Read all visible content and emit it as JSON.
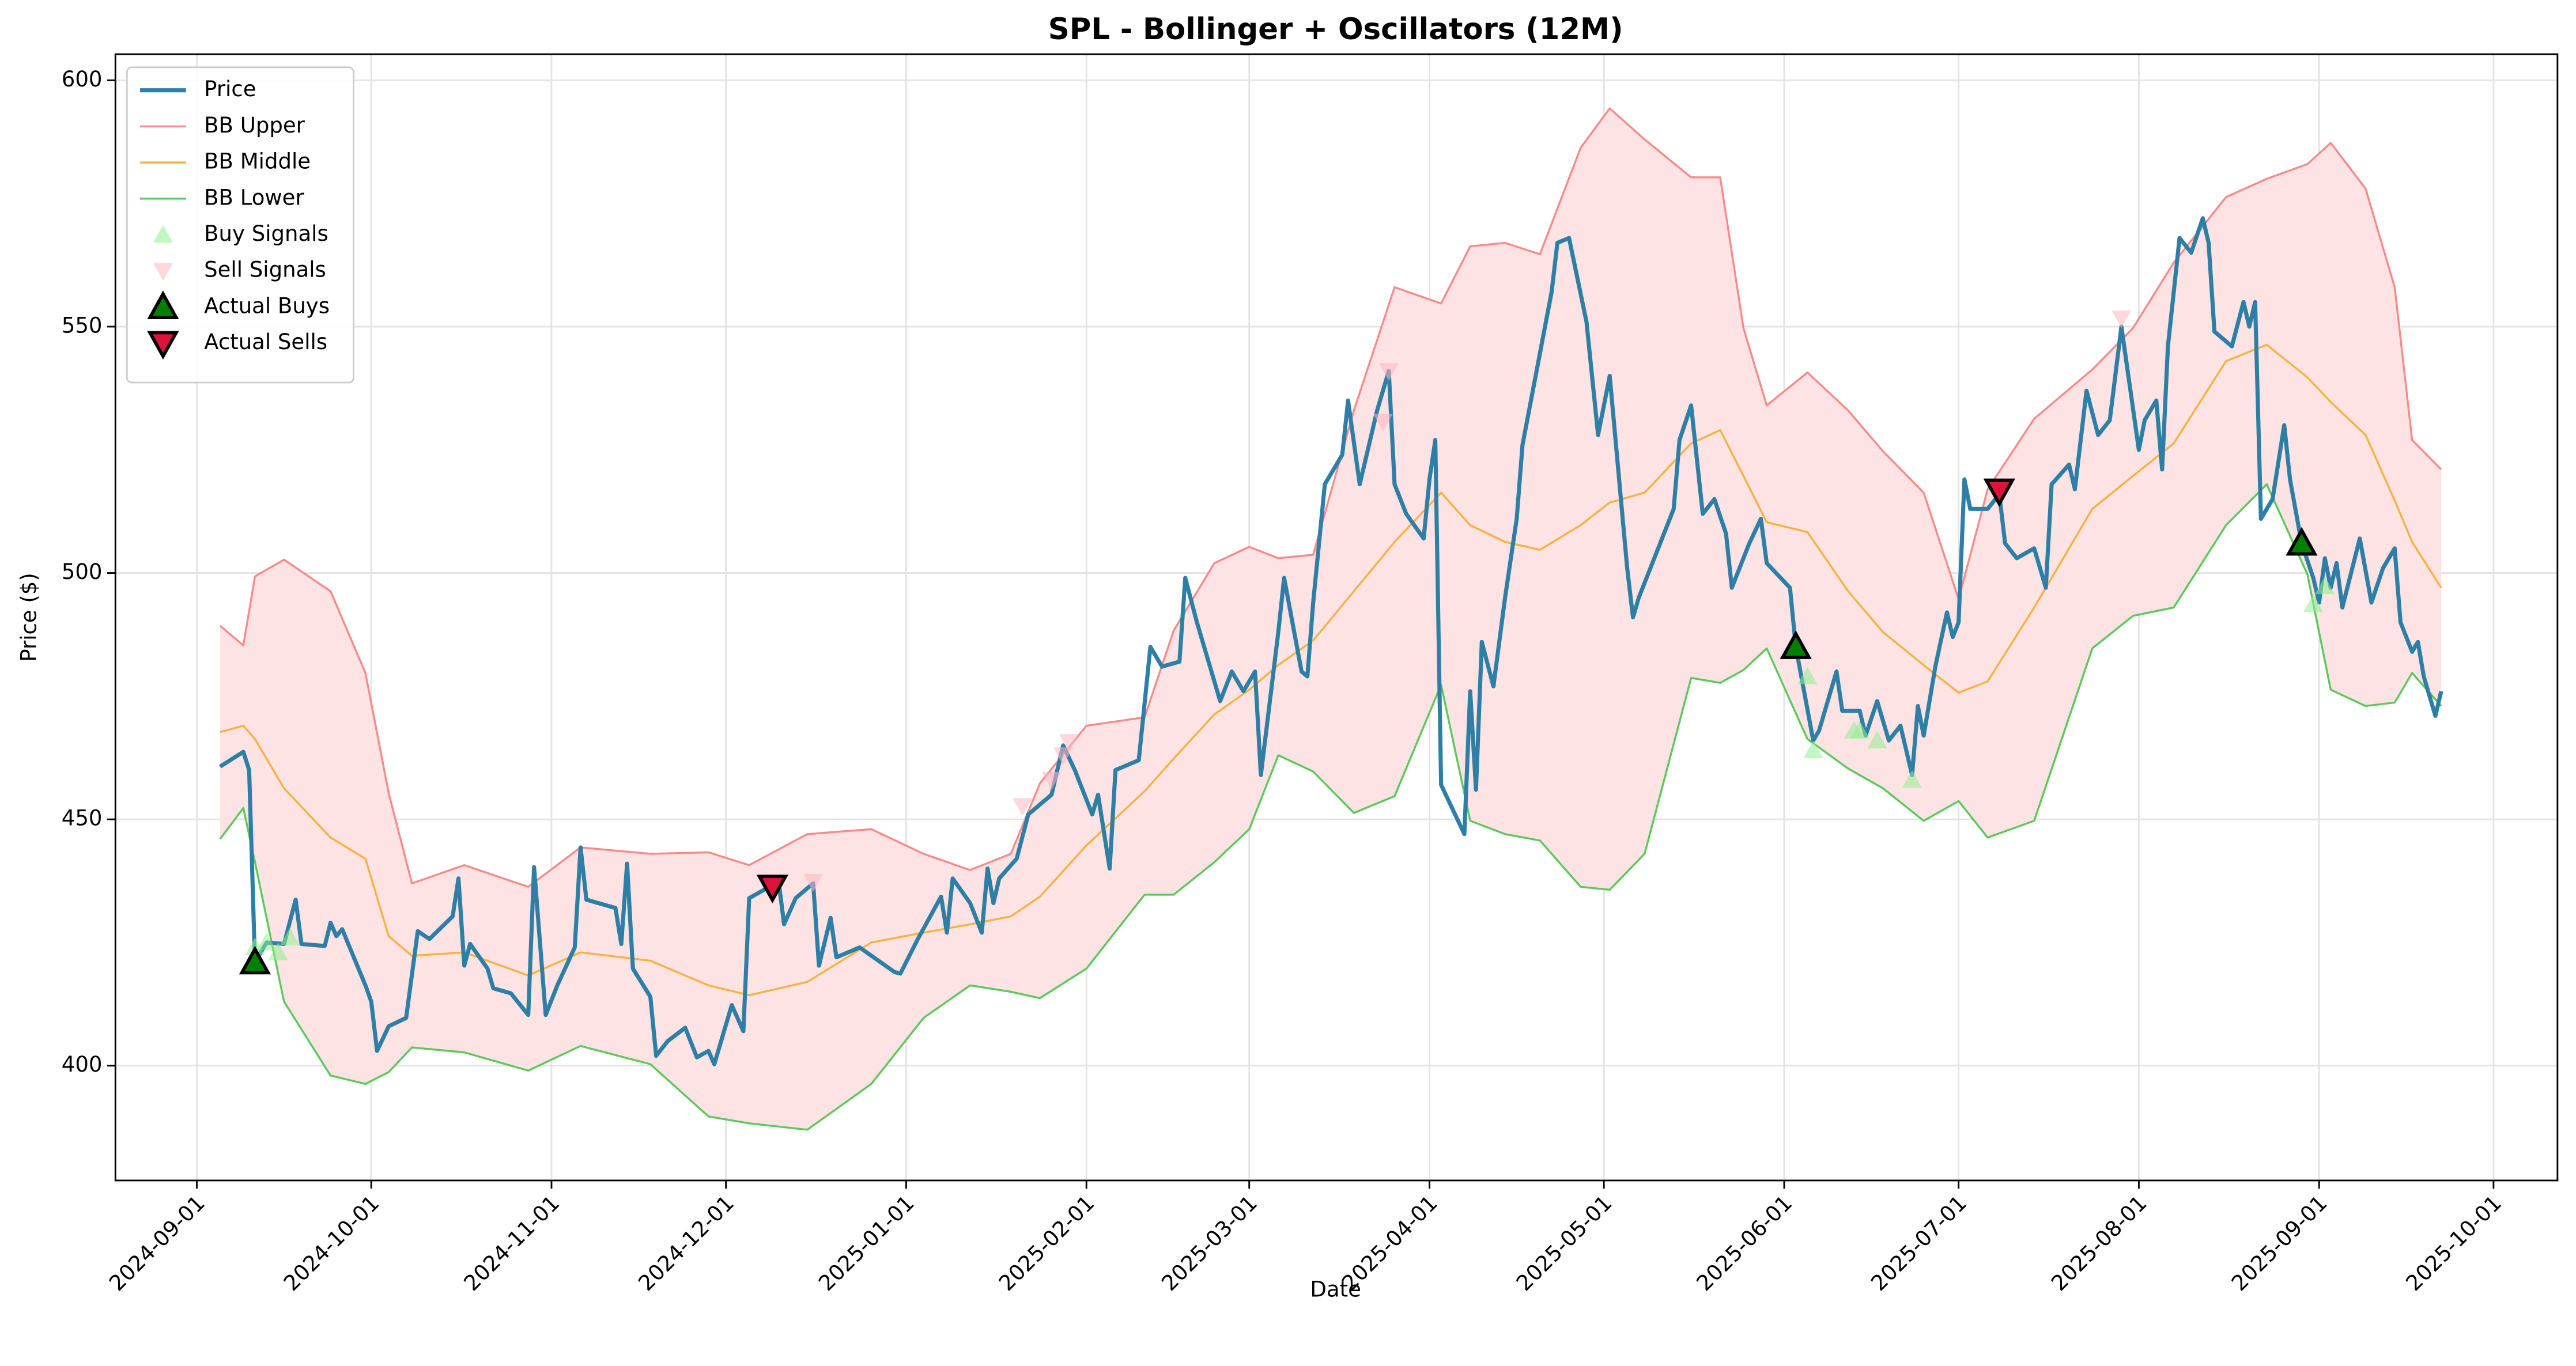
{
  "chart_data": {
    "type": "line",
    "title": "SPL - Bollinger + Oscillators (12M)",
    "x_label": "Date",
    "y_label": "Price ($)",
    "grid": true,
    "legend": "upper left",
    "band_fill_color": "#fde3e3",
    "xlim": [
      "2024-08-18",
      "2025-10-12"
    ],
    "xticks": [
      "2024-09-01",
      "2024-10-01",
      "2024-11-01",
      "2024-12-01",
      "2025-01-01",
      "2025-02-01",
      "2025-03-01",
      "2025-04-01",
      "2025-05-01",
      "2025-06-01",
      "2025-07-01",
      "2025-08-01",
      "2025-09-01",
      "2025-10-01"
    ],
    "ylim": [
      376.7,
      605.3
    ],
    "yticks": [
      400,
      450,
      500,
      550,
      600
    ],
    "series": [
      {
        "name": "Price",
        "color": "#2E7FA6",
        "width": 2.5,
        "x": [
          "2024-09-05",
          "2024-09-09",
          "2024-09-10",
          "2024-09-11",
          "2024-09-13",
          "2024-09-16",
          "2024-09-18",
          "2024-09-19",
          "2024-09-23",
          "2024-09-24",
          "2024-09-25",
          "2024-09-26",
          "2024-09-30",
          "2024-10-01",
          "2024-10-02",
          "2024-10-04",
          "2024-10-07",
          "2024-10-09",
          "2024-10-11",
          "2024-10-15",
          "2024-10-16",
          "2024-10-17",
          "2024-10-18",
          "2024-10-21",
          "2024-10-22",
          "2024-10-25",
          "2024-10-28",
          "2024-10-29",
          "2024-10-31",
          "2024-11-02",
          "2024-11-05",
          "2024-11-06",
          "2024-11-07",
          "2024-11-12",
          "2024-11-13",
          "2024-11-14",
          "2024-11-15",
          "2024-11-18",
          "2024-11-19",
          "2024-11-21",
          "2024-11-24",
          "2024-11-26",
          "2024-11-28",
          "2024-11-29",
          "2024-12-02",
          "2024-12-04",
          "2024-12-05",
          "2024-12-08",
          "2024-12-10",
          "2024-12-11",
          "2024-12-13",
          "2024-12-16",
          "2024-12-17",
          "2024-12-19",
          "2024-12-20",
          "2024-12-24",
          "2024-12-30",
          "2024-12-31",
          "2025-01-03",
          "2025-01-07",
          "2025-01-08",
          "2025-01-09",
          "2025-01-12",
          "2025-01-14",
          "2025-01-15",
          "2025-01-16",
          "2025-01-17",
          "2025-01-20",
          "2025-01-22",
          "2025-01-26",
          "2025-01-28",
          "2025-01-30",
          "2025-02-02",
          "2025-02-03",
          "2025-02-05",
          "2025-02-06",
          "2025-02-10",
          "2025-02-12",
          "2025-02-14",
          "2025-02-17",
          "2025-02-18",
          "2025-02-20",
          "2025-02-24",
          "2025-02-26",
          "2025-02-28",
          "2025-03-02",
          "2025-03-03",
          "2025-03-06",
          "2025-03-07",
          "2025-03-10",
          "2025-03-11",
          "2025-03-12",
          "2025-03-14",
          "2025-03-17",
          "2025-03-18",
          "2025-03-20",
          "2025-03-23",
          "2025-03-25",
          "2025-03-26",
          "2025-03-28",
          "2025-03-31",
          "2025-04-01",
          "2025-04-02",
          "2025-04-03",
          "2025-04-07",
          "2025-04-08",
          "2025-04-09",
          "2025-04-10",
          "2025-04-12",
          "2025-04-14",
          "2025-04-16",
          "2025-04-17",
          "2025-04-22",
          "2025-04-23",
          "2025-04-25",
          "2025-04-28",
          "2025-04-30",
          "2025-05-02",
          "2025-05-05",
          "2025-05-06",
          "2025-05-07",
          "2025-05-09",
          "2025-05-11",
          "2025-05-13",
          "2025-05-14",
          "2025-05-16",
          "2025-05-18",
          "2025-05-20",
          "2025-05-22",
          "2025-05-23",
          "2025-05-26",
          "2025-05-28",
          "2025-05-29",
          "2025-06-02",
          "2025-06-03",
          "2025-06-06",
          "2025-06-07",
          "2025-06-10",
          "2025-06-11",
          "2025-06-14",
          "2025-06-15",
          "2025-06-17",
          "2025-06-19",
          "2025-06-21",
          "2025-06-23",
          "2025-06-24",
          "2025-06-25",
          "2025-06-27",
          "2025-06-29",
          "2025-06-30",
          "2025-07-01",
          "2025-07-02",
          "2025-07-03",
          "2025-07-06",
          "2025-07-08",
          "2025-07-09",
          "2025-07-11",
          "2025-07-14",
          "2025-07-16",
          "2025-07-17",
          "2025-07-20",
          "2025-07-21",
          "2025-07-23",
          "2025-07-25",
          "2025-07-27",
          "2025-07-29",
          "2025-08-01",
          "2025-08-02",
          "2025-08-04",
          "2025-08-05",
          "2025-08-06",
          "2025-08-08",
          "2025-08-10",
          "2025-08-12",
          "2025-08-13",
          "2025-08-14",
          "2025-08-17",
          "2025-08-19",
          "2025-08-20",
          "2025-08-21",
          "2025-08-22",
          "2025-08-24",
          "2025-08-26",
          "2025-08-27",
          "2025-08-29",
          "2025-08-31",
          "2025-09-01",
          "2025-09-02",
          "2025-09-03",
          "2025-09-04",
          "2025-09-05",
          "2025-09-08",
          "2025-09-10",
          "2025-09-12",
          "2025-09-14",
          "2025-09-15",
          "2025-09-17",
          "2025-09-18",
          "2025-09-19",
          "2025-09-21",
          "2025-09-22"
        ],
        "values": [
          460.7,
          463.7,
          460,
          421,
          425,
          424.7,
          433.7,
          424.7,
          424.3,
          429,
          426.3,
          427.7,
          416.3,
          413,
          403,
          408,
          409.7,
          427.3,
          425.7,
          430.3,
          438,
          420.3,
          424.7,
          419.7,
          415.7,
          414.7,
          410.3,
          440.3,
          410.3,
          416.3,
          424,
          444.3,
          433.7,
          432,
          424.7,
          441,
          419.7,
          414,
          402,
          405,
          407.7,
          401.7,
          403,
          400.3,
          412.3,
          407,
          434,
          436,
          438,
          428.7,
          434,
          437,
          420.3,
          430,
          422,
          424,
          419,
          418.7,
          425.7,
          434.3,
          427,
          438,
          433,
          427,
          440,
          433,
          438,
          442,
          451,
          455,
          465,
          460,
          451,
          455,
          440,
          460,
          462,
          485,
          481,
          482,
          499,
          490,
          474,
          480,
          476,
          480,
          459,
          488,
          499,
          480,
          479,
          494,
          518,
          524,
          535,
          518,
          533,
          541,
          518,
          512,
          507,
          519,
          527,
          457,
          447,
          476,
          456,
          486,
          477,
          495,
          511,
          526,
          557,
          567,
          568,
          551,
          528,
          540,
          501,
          491,
          495,
          501,
          507,
          513,
          527,
          534,
          512,
          515,
          508,
          497,
          506,
          511,
          502,
          497,
          485,
          466,
          468,
          480,
          472,
          472,
          467,
          474,
          466,
          469,
          459,
          473,
          467,
          481,
          492,
          487,
          490,
          519,
          513,
          513,
          516,
          506,
          503,
          505,
          497,
          518,
          522,
          517,
          537,
          528,
          531,
          550,
          525,
          531,
          535,
          521,
          546,
          568,
          565,
          572,
          567,
          549,
          546,
          555,
          550,
          555,
          511,
          515,
          530,
          519,
          506,
          499,
          494,
          503,
          497,
          502,
          493,
          507,
          494,
          501,
          505,
          490,
          484,
          486,
          479,
          471,
          476
        ]
      },
      {
        "name": "BB Upper",
        "color": "#F78A8A",
        "width": 1.2,
        "x": [
          "2024-09-05",
          "2024-09-09",
          "2024-09-11",
          "2024-09-16",
          "2024-09-24",
          "2024-09-30",
          "2024-10-04",
          "2024-10-08",
          "2024-10-17",
          "2024-10-28",
          "2024-11-06",
          "2024-11-18",
          "2024-11-28",
          "2024-12-05",
          "2024-12-15",
          "2024-12-26",
          "2025-01-04",
          "2025-01-12",
          "2025-01-19",
          "2025-01-24",
          "2025-02-01",
          "2025-02-11",
          "2025-02-16",
          "2025-02-23",
          "2025-03-01",
          "2025-03-06",
          "2025-03-12",
          "2025-03-19",
          "2025-03-26",
          "2025-04-03",
          "2025-04-08",
          "2025-04-14",
          "2025-04-20",
          "2025-04-27",
          "2025-05-02",
          "2025-05-08",
          "2025-05-16",
          "2025-05-21",
          "2025-05-25",
          "2025-05-29",
          "2025-06-05",
          "2025-06-12",
          "2025-06-18",
          "2025-06-25",
          "2025-07-01",
          "2025-07-06",
          "2025-07-14",
          "2025-07-24",
          "2025-07-31",
          "2025-08-07",
          "2025-08-16",
          "2025-08-23",
          "2025-08-30",
          "2025-09-03",
          "2025-09-09",
          "2025-09-14",
          "2025-09-17",
          "2025-09-22"
        ],
        "values": [
          489.3,
          485.3,
          499.3,
          502.7,
          496.3,
          479.7,
          455.3,
          437,
          440.7,
          436.3,
          444.3,
          443,
          443.3,
          440.7,
          447,
          448,
          443,
          439.7,
          443,
          457.3,
          469,
          470.7,
          488.3,
          502,
          505.3,
          503,
          503.7,
          533,
          558,
          554.7,
          566.3,
          567,
          564.7,
          586.3,
          594.3,
          588,
          580.3,
          580.3,
          549.7,
          534,
          540.7,
          533,
          524.7,
          516.3,
          494.7,
          517,
          531.3,
          541.3,
          549.7,
          563,
          576.3,
          580,
          583,
          587.3,
          578,
          558,
          527,
          521
        ]
      },
      {
        "name": "BB Middle",
        "color": "#F7B240",
        "width": 1.2,
        "x": [
          "2024-09-05",
          "2024-09-09",
          "2024-09-11",
          "2024-09-16",
          "2024-09-24",
          "2024-09-30",
          "2024-10-04",
          "2024-10-08",
          "2024-10-17",
          "2024-10-28",
          "2024-11-06",
          "2024-11-18",
          "2024-11-28",
          "2024-12-05",
          "2024-12-15",
          "2024-12-26",
          "2025-01-04",
          "2025-01-12",
          "2025-01-19",
          "2025-01-24",
          "2025-02-01",
          "2025-02-11",
          "2025-02-16",
          "2025-02-23",
          "2025-03-01",
          "2025-03-06",
          "2025-03-12",
          "2025-03-19",
          "2025-03-26",
          "2025-04-03",
          "2025-04-08",
          "2025-04-14",
          "2025-04-20",
          "2025-04-27",
          "2025-05-02",
          "2025-05-08",
          "2025-05-16",
          "2025-05-21",
          "2025-05-25",
          "2025-05-29",
          "2025-06-05",
          "2025-06-12",
          "2025-06-18",
          "2025-06-25",
          "2025-07-01",
          "2025-07-06",
          "2025-07-14",
          "2025-07-24",
          "2025-07-31",
          "2025-08-07",
          "2025-08-16",
          "2025-08-23",
          "2025-08-30",
          "2025-09-03",
          "2025-09-09",
          "2025-09-14",
          "2025-09-17",
          "2025-09-22"
        ],
        "values": [
          467.7,
          469,
          466.3,
          456.3,
          446.3,
          442,
          426.3,
          422.3,
          423,
          418.3,
          423,
          421.3,
          416.3,
          414.3,
          417,
          425,
          427,
          428.7,
          430.3,
          434.3,
          444.7,
          455.7,
          462.3,
          471.3,
          476.3,
          481.3,
          486.3,
          496.3,
          506.3,
          516.3,
          509.7,
          506.3,
          504.7,
          509.7,
          514.3,
          516.3,
          526.3,
          529,
          519.7,
          510.3,
          508.3,
          496.3,
          488,
          481.3,
          475.7,
          478,
          493,
          513,
          519.7,
          526.3,
          543,
          546.3,
          539.7,
          534.7,
          528,
          514.7,
          506.3,
          497
        ]
      },
      {
        "name": "BB Lower",
        "color": "#5CC85C",
        "width": 1.2,
        "x": [
          "2024-09-05",
          "2024-09-09",
          "2024-09-11",
          "2024-09-16",
          "2024-09-24",
          "2024-09-30",
          "2024-10-04",
          "2024-10-08",
          "2024-10-17",
          "2024-10-28",
          "2024-11-06",
          "2024-11-18",
          "2024-11-28",
          "2024-12-05",
          "2024-12-15",
          "2024-12-26",
          "2025-01-04",
          "2025-01-12",
          "2025-01-19",
          "2025-01-24",
          "2025-02-01",
          "2025-02-11",
          "2025-02-16",
          "2025-02-23",
          "2025-03-01",
          "2025-03-06",
          "2025-03-12",
          "2025-03-19",
          "2025-03-26",
          "2025-04-03",
          "2025-04-08",
          "2025-04-14",
          "2025-04-20",
          "2025-04-27",
          "2025-05-02",
          "2025-05-08",
          "2025-05-16",
          "2025-05-21",
          "2025-05-25",
          "2025-05-29",
          "2025-06-05",
          "2025-06-12",
          "2025-06-18",
          "2025-06-25",
          "2025-07-01",
          "2025-07-06",
          "2025-07-14",
          "2025-07-24",
          "2025-07-31",
          "2025-08-07",
          "2025-08-16",
          "2025-08-23",
          "2025-08-30",
          "2025-09-03",
          "2025-09-09",
          "2025-09-14",
          "2025-09-17",
          "2025-09-22"
        ],
        "values": [
          446,
          452.3,
          441.3,
          413,
          398,
          396.3,
          398.7,
          403.7,
          402.7,
          399,
          404,
          400.3,
          389.7,
          388.3,
          387,
          396.3,
          409.7,
          416.3,
          415,
          413.7,
          419.7,
          434.7,
          434.7,
          441.3,
          448,
          463,
          459.7,
          451.3,
          454.7,
          477.3,
          449.7,
          447,
          445.7,
          436.3,
          435.7,
          443,
          478.7,
          477.7,
          480.3,
          484.7,
          466.3,
          460.3,
          456.3,
          449.7,
          453.7,
          446.3,
          449.7,
          484.7,
          491.3,
          493,
          509.7,
          518,
          499.7,
          476.3,
          473,
          473.7,
          479.7,
          473
        ]
      },
      {
        "name": "Buy Signals",
        "color": "#90EE90",
        "marker": "^",
        "size": 6,
        "opacity": 0.55,
        "x": [
          "2024-09-11",
          "2024-09-13",
          "2024-09-15",
          "2024-09-17",
          "2025-06-05",
          "2025-06-06",
          "2025-06-13",
          "2025-06-14",
          "2025-06-17",
          "2025-06-23",
          "2025-08-31",
          "2025-09-02"
        ],
        "values": [
          424,
          425,
          423,
          426,
          479,
          464,
          468,
          468,
          466,
          458,
          493.7,
          497.3
        ]
      },
      {
        "name": "Sell Signals",
        "color": "#FFB6C1",
        "marker": "v",
        "size": 6,
        "opacity": 0.55,
        "x": [
          "2024-12-16",
          "2025-01-21",
          "2025-01-26",
          "2025-01-28",
          "2025-01-29",
          "2025-03-24",
          "2025-03-25",
          "2025-07-29"
        ],
        "values": [
          437.3,
          452.7,
          458,
          463,
          465.7,
          530.7,
          541,
          551.7
        ]
      },
      {
        "name": "Actual Buys",
        "color": "#008000",
        "marker": "^",
        "size": 8,
        "opacity": 1,
        "edge": "#000000",
        "x": [
          "2024-09-11",
          "2025-06-03",
          "2025-08-29"
        ],
        "values": [
          421,
          485,
          506
        ]
      },
      {
        "name": "Actual Sells",
        "color": "#DC143C",
        "marker": "v",
        "size": 8,
        "opacity": 1,
        "edge": "#000000",
        "x": [
          "2024-12-09",
          "2025-07-08"
        ],
        "values": [
          436.3,
          516.7
        ]
      }
    ]
  }
}
